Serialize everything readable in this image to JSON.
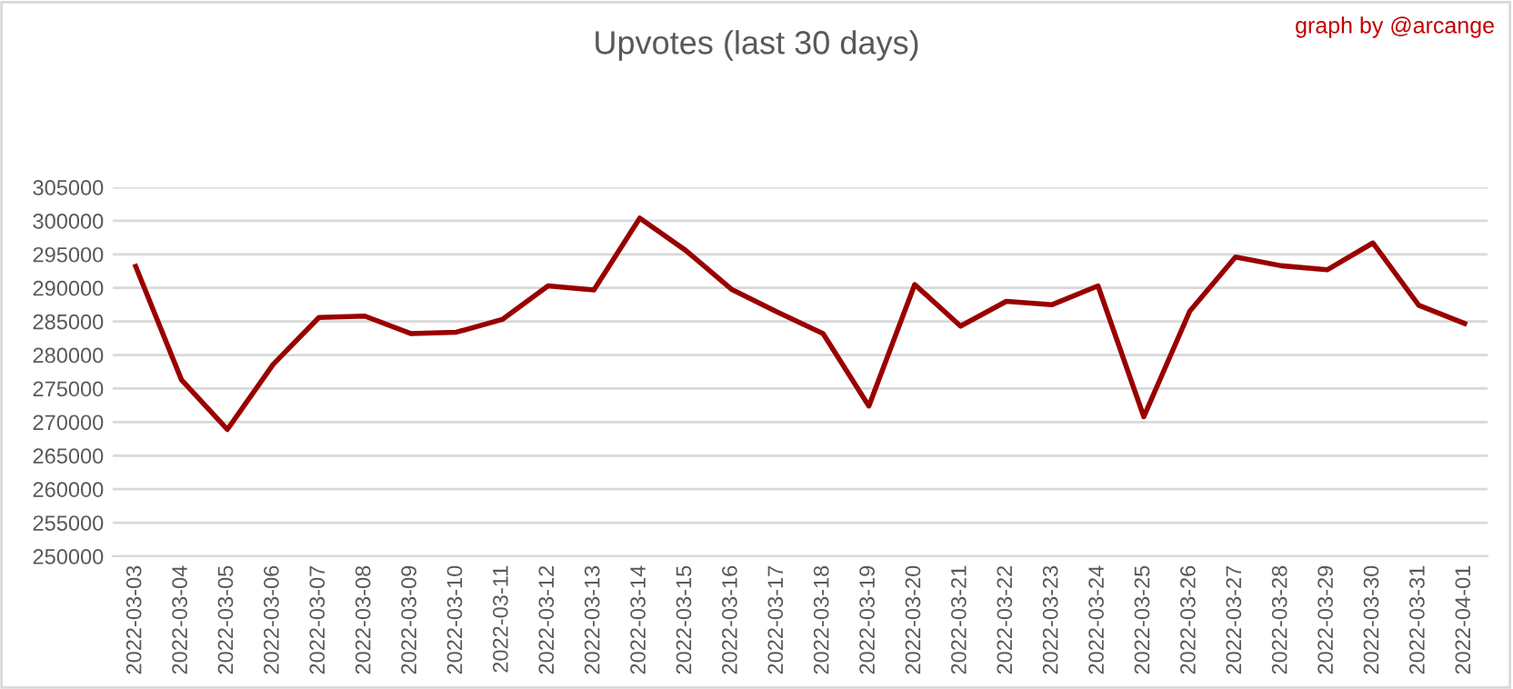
{
  "chart_data": {
    "type": "line",
    "title": "Upvotes (last 30 days)",
    "annotations": [
      "graph by @arcange"
    ],
    "categories": [
      "2022-03-03",
      "2022-03-04",
      "2022-03-05",
      "2022-03-06",
      "2022-03-07",
      "2022-03-08",
      "2022-03-09",
      "2022-03-10",
      "2022-03-11",
      "2022-03-12",
      "2022-03-13",
      "2022-03-14",
      "2022-03-15",
      "2022-03-16",
      "2022-03-17",
      "2022-03-18",
      "2022-03-19",
      "2022-03-20",
      "2022-03-21",
      "2022-03-22",
      "2022-03-23",
      "2022-03-24",
      "2022-03-25",
      "2022-03-26",
      "2022-03-27",
      "2022-03-28",
      "2022-03-29",
      "2022-03-30",
      "2022-03-31",
      "2022-04-01"
    ],
    "series": [
      {
        "color": "#990000",
        "values": [
          293200,
          276300,
          268900,
          278600,
          285600,
          285800,
          283200,
          283400,
          285300,
          290300,
          289700,
          300400,
          295600,
          289800,
          286400,
          283200,
          272400,
          290500,
          284300,
          288000,
          287500,
          290300,
          270800,
          286500,
          294600,
          293300,
          292700,
          296700,
          287400,
          284700
        ]
      }
    ],
    "ylim": [
      250000,
      305000
    ],
    "yticks": [
      250000,
      255000,
      260000,
      265000,
      270000,
      275000,
      280000,
      285000,
      290000,
      295000,
      300000,
      305000
    ],
    "grid": "y",
    "legend": false,
    "marker": "none",
    "line_style": "solid"
  }
}
